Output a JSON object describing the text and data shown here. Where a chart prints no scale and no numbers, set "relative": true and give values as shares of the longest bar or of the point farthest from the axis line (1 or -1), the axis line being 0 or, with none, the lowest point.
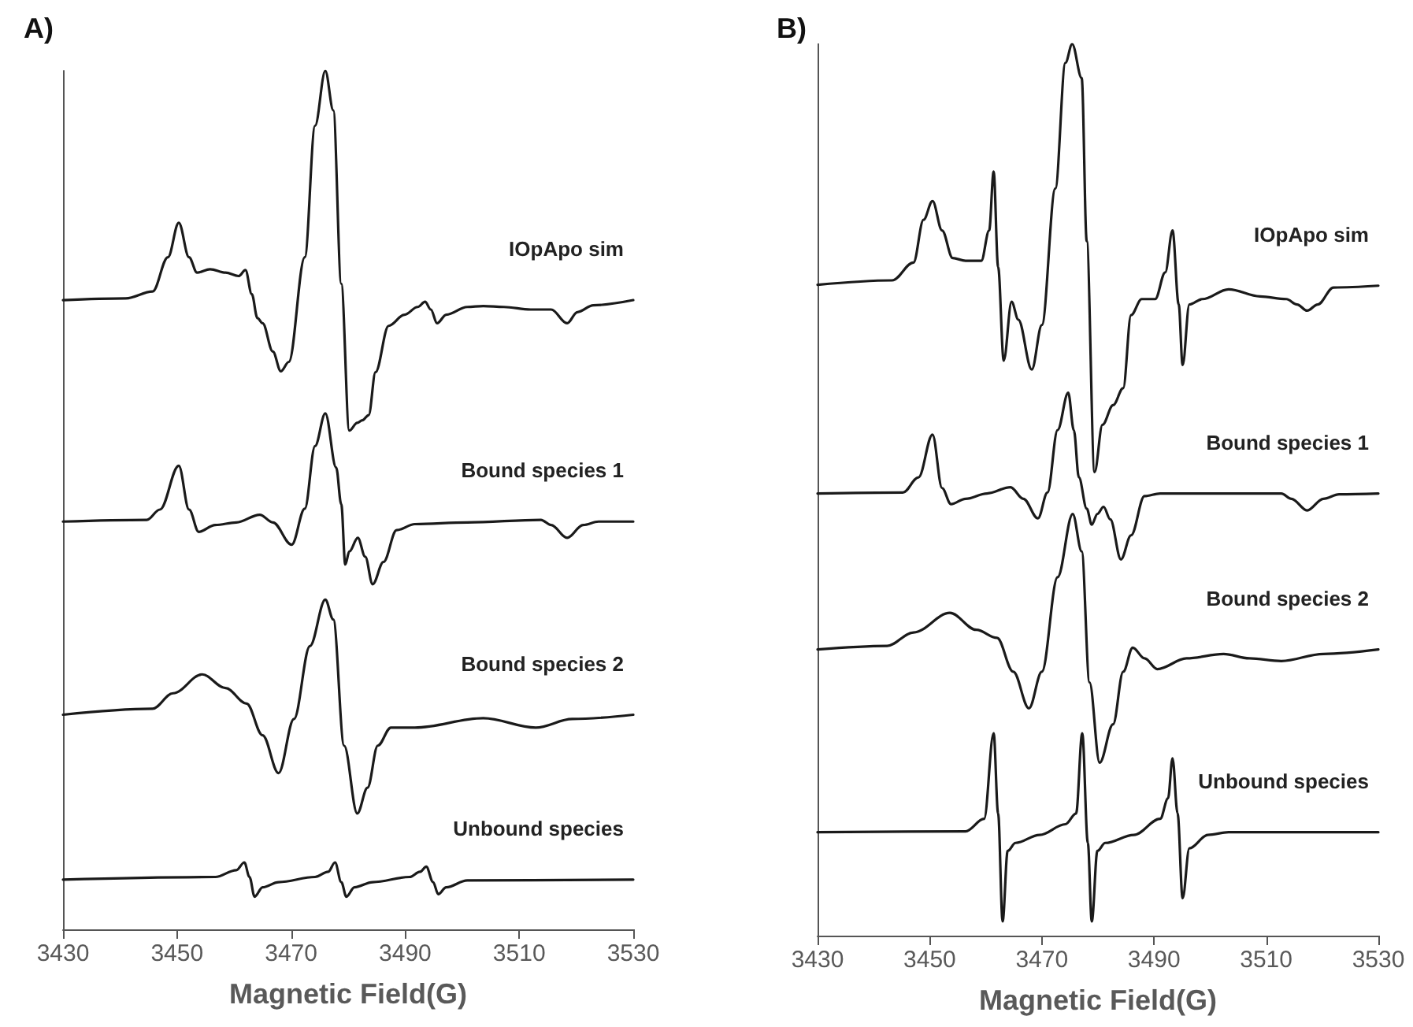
{
  "chart_data": [
    {
      "type": "line",
      "title": "A)",
      "xlabel": "Magnetic Field(G)",
      "xlim": [
        3430,
        3530
      ],
      "xticks": [
        3430,
        3450,
        3470,
        3490,
        3510,
        3530
      ],
      "relative": true,
      "tick_labels": "x",
      "legend": false,
      "grid": false,
      "marker": "none",
      "series": [
        {
          "name": "IOpApo sim",
          "color": "#1a1a1a",
          "x": [
            3430,
            3441,
            3445.7,
            3448.4,
            3450.3,
            3452.1,
            3453.5,
            3455.8,
            3458.5,
            3460.8,
            3462,
            3463.1,
            3464.1,
            3465,
            3466.8,
            3468.2,
            3469.6,
            3472.4,
            3474.2,
            3476,
            3477.4,
            3478.8,
            3480.2,
            3481.6,
            3482.5,
            3483.6,
            3484.8,
            3487.1,
            3489.9,
            3492.2,
            3493.5,
            3494.5,
            3495.6,
            3497.2,
            3500.9,
            3503.7,
            3507.3,
            3512,
            3515.6,
            3518.4,
            3520.2,
            3523,
            3530
          ],
          "values": [
            0.733,
            0.735,
            0.743,
            0.783,
            0.823,
            0.783,
            0.765,
            0.769,
            0.765,
            0.761,
            0.768,
            0.74,
            0.712,
            0.706,
            0.673,
            0.65,
            0.661,
            0.783,
            0.936,
            1,
            0.954,
            0.752,
            0.581,
            0.59,
            0.593,
            0.599,
            0.649,
            0.703,
            0.716,
            0.725,
            0.731,
            0.722,
            0.706,
            0.716,
            0.725,
            0.726,
            0.725,
            0.722,
            0.722,
            0.706,
            0.719,
            0.727,
            0.733
          ]
        },
        {
          "name": "Bound species 1",
          "color": "#1a1a1a",
          "x": [
            3430,
            3444.7,
            3447,
            3450.3,
            3452.1,
            3453.8,
            3456.7,
            3460.4,
            3464.5,
            3466.8,
            3470.1,
            3472.4,
            3474.2,
            3476,
            3477.9,
            3478.8,
            3479.5,
            3480.2,
            3481.7,
            3483,
            3484.3,
            3486.2,
            3488.5,
            3491.7,
            3500.9,
            3513.8,
            3515.6,
            3518.4,
            3521.2,
            3523.9,
            3530
          ],
          "values": [
            0.475,
            0.477,
            0.489,
            0.54,
            0.489,
            0.463,
            0.471,
            0.474,
            0.483,
            0.474,
            0.448,
            0.49,
            0.563,
            0.601,
            0.538,
            0.495,
            0.425,
            0.44,
            0.456,
            0.434,
            0.402,
            0.428,
            0.465,
            0.472,
            0.474,
            0.477,
            0.471,
            0.456,
            0.471,
            0.475,
            0.475
          ]
        },
        {
          "name": "Bound species 2",
          "color": "#1a1a1a",
          "x": [
            3430,
            3445.7,
            3449.3,
            3454.4,
            3458.5,
            3462.2,
            3465,
            3467.8,
            3470.5,
            3473.3,
            3476,
            3477.4,
            3479.3,
            3481.6,
            3483.4,
            3485.2,
            3487.5,
            3491.7,
            3503.7,
            3512.9,
            3519.3,
            3530
          ],
          "values": [
            0.25,
            0.257,
            0.275,
            0.297,
            0.281,
            0.263,
            0.226,
            0.182,
            0.245,
            0.33,
            0.384,
            0.361,
            0.214,
            0.135,
            0.165,
            0.214,
            0.235,
            0.235,
            0.246,
            0.235,
            0.245,
            0.25
          ]
        },
        {
          "name": "Unbound species",
          "color": "#1a1a1a",
          "x": [
            3430,
            3456.7,
            3460.4,
            3461.8,
            3462.7,
            3463.6,
            3465,
            3467.8,
            3474.2,
            3476.5,
            3477.7,
            3478.8,
            3479.7,
            3481.1,
            3484.3,
            3490.8,
            3492.6,
            3493.7,
            3494.9,
            3495.8,
            3497.2,
            3500.9,
            3530
          ],
          "values": [
            0.058,
            0.061,
            0.069,
            0.078,
            0.061,
            0.038,
            0.049,
            0.055,
            0.061,
            0.067,
            0.078,
            0.055,
            0.038,
            0.049,
            0.055,
            0.061,
            0.067,
            0.073,
            0.055,
            0.041,
            0.049,
            0.057,
            0.058
          ]
        }
      ]
    },
    {
      "type": "line",
      "title": "B)",
      "xlabel": "Magnetic Field(G)",
      "xlim": [
        3430,
        3530
      ],
      "xticks": [
        3430,
        3450,
        3470,
        3490,
        3510,
        3530
      ],
      "relative": true,
      "tick_labels": "x",
      "legend": false,
      "grid": false,
      "marker": "none",
      "series": [
        {
          "name": "IOpApo sim",
          "color": "#1a1a1a",
          "x": [
            3430,
            3443.3,
            3447.1,
            3448.9,
            3450.5,
            3452.2,
            3454.1,
            3456.4,
            3459.2,
            3460.6,
            3461.4,
            3462.2,
            3463.2,
            3464.6,
            3465.8,
            3468.2,
            3470,
            3472.4,
            3474.2,
            3475.4,
            3477.1,
            3478,
            3479.4,
            3480.8,
            3482.7,
            3484.5,
            3485.9,
            3487.8,
            3490.2,
            3492,
            3493.3,
            3494.4,
            3495.1,
            3496.3,
            3498.6,
            3503.3,
            3508.9,
            3513.6,
            3515.5,
            3517.3,
            3519.2,
            3522,
            3530
          ],
          "values": [
            0.73,
            0.735,
            0.755,
            0.803,
            0.824,
            0.791,
            0.76,
            0.757,
            0.757,
            0.791,
            0.857,
            0.75,
            0.645,
            0.711,
            0.691,
            0.635,
            0.685,
            0.838,
            0.979,
            1,
            0.962,
            0.779,
            0.52,
            0.573,
            0.595,
            0.614,
            0.696,
            0.714,
            0.714,
            0.744,
            0.791,
            0.708,
            0.64,
            0.708,
            0.714,
            0.725,
            0.717,
            0.714,
            0.708,
            0.701,
            0.708,
            0.727,
            0.729
          ]
        },
        {
          "name": "Bound species 1",
          "color": "#1a1a1a",
          "x": [
            3430,
            3445.2,
            3448,
            3450.5,
            3452.2,
            3453.8,
            3456.4,
            3460.2,
            3464.4,
            3466.7,
            3469.3,
            3471,
            3472.8,
            3474.7,
            3475.7,
            3476.6,
            3478,
            3478.9,
            3479.9,
            3481,
            3482.2,
            3484.1,
            3485.9,
            3488.3,
            3491.1,
            3512.7,
            3514.5,
            3517.3,
            3520.2,
            3523,
            3530
          ],
          "values": [
            0.496,
            0.497,
            0.514,
            0.562,
            0.502,
            0.484,
            0.49,
            0.496,
            0.503,
            0.49,
            0.468,
            0.497,
            0.567,
            0.609,
            0.567,
            0.514,
            0.479,
            0.461,
            0.473,
            0.481,
            0.467,
            0.422,
            0.449,
            0.493,
            0.496,
            0.496,
            0.49,
            0.477,
            0.49,
            0.495,
            0.496
          ]
        },
        {
          "name": "Bound species 2",
          "color": "#1a1a1a",
          "x": [
            3430,
            3442.4,
            3447.1,
            3453.6,
            3458.3,
            3462,
            3464.9,
            3467.7,
            3470,
            3472.8,
            3475.5,
            3477.1,
            3478.5,
            3480.3,
            3482.7,
            3484.5,
            3486.2,
            3488.3,
            3490.6,
            3495.8,
            3502.4,
            3507,
            3512.7,
            3520.2,
            3530
          ],
          "values": [
            0.321,
            0.325,
            0.34,
            0.362,
            0.343,
            0.334,
            0.296,
            0.255,
            0.296,
            0.402,
            0.473,
            0.431,
            0.284,
            0.194,
            0.237,
            0.296,
            0.323,
            0.311,
            0.299,
            0.311,
            0.316,
            0.311,
            0.308,
            0.316,
            0.321
          ]
        },
        {
          "name": "Unbound species",
          "color": "#1a1a1a",
          "x": [
            3430,
            3456.4,
            3459.7,
            3461.4,
            3462.2,
            3463,
            3463.9,
            3465.3,
            3469.6,
            3474.2,
            3476.1,
            3477.2,
            3478.2,
            3478.9,
            3479.9,
            3481.3,
            3486.4,
            3491.1,
            3492.5,
            3493.3,
            3494.2,
            3495.1,
            3496.3,
            3499.6,
            3503.3,
            3530
          ],
          "values": [
            0.116,
            0.117,
            0.131,
            0.227,
            0.137,
            0.016,
            0.095,
            0.104,
            0.113,
            0.125,
            0.137,
            0.227,
            0.104,
            0.016,
            0.095,
            0.104,
            0.113,
            0.131,
            0.154,
            0.199,
            0.137,
            0.042,
            0.098,
            0.113,
            0.116,
            0.116
          ]
        }
      ]
    }
  ]
}
